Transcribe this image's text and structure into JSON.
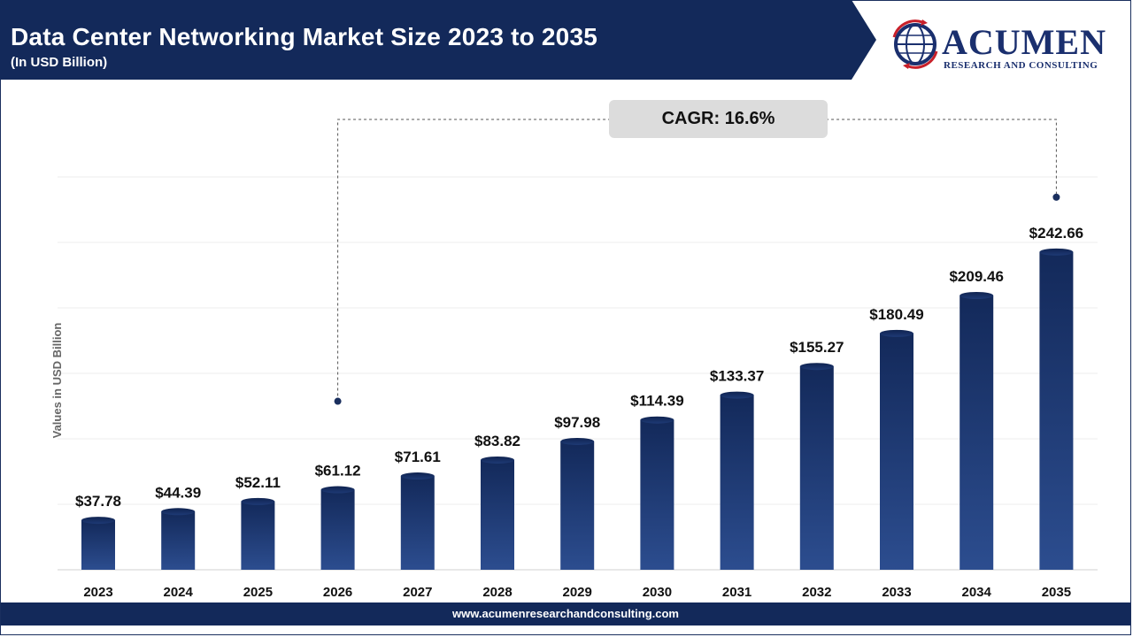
{
  "header": {
    "title": "Data Center Networking Market Size 2023 to 2035",
    "subtitle": "(In USD Billion)"
  },
  "logo": {
    "name": "ACUMEN",
    "tagline": "RESEARCH AND CONSULTING"
  },
  "annotation": {
    "cagr_label": "CAGR: 16.6%"
  },
  "footer": {
    "url": "www.acumenresearchandconsulting.com"
  },
  "colors": {
    "banner": "#13295a",
    "bar_top": "#13295a",
    "bar_bottom": "#2c4d8f",
    "accent": "#1a2f6e"
  },
  "chart_data": {
    "type": "bar",
    "title": "Data Center Networking Market Size 2023 to 2035",
    "subtitle": "(In USD Billion)",
    "ylabel": "Values in USD Billion",
    "xlabel": "",
    "categories": [
      "2023",
      "2024",
      "2025",
      "2026",
      "2027",
      "2028",
      "2029",
      "2030",
      "2031",
      "2032",
      "2033",
      "2034",
      "2035"
    ],
    "values": [
      37.78,
      44.39,
      52.11,
      61.12,
      71.61,
      83.82,
      97.98,
      114.39,
      133.37,
      155.27,
      180.49,
      209.46,
      242.66
    ],
    "data_labels": [
      "$37.78",
      "$44.39",
      "$52.11",
      "$61.12",
      "$71.61",
      "$83.82",
      "$97.98",
      "$114.39",
      "$133.37",
      "$155.27",
      "$180.49",
      "$209.46",
      "$242.66"
    ],
    "ylim": [
      0,
      300
    ],
    "grid": true,
    "legend": "none"
  }
}
